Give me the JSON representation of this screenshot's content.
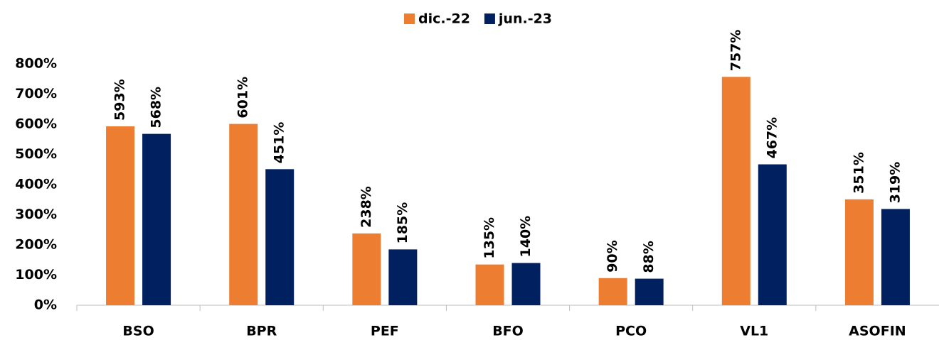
{
  "chart_data": {
    "type": "bar",
    "categories": [
      "BSO",
      "BPR",
      "PEF",
      "BFO",
      "PCO",
      "VL1",
      "ASOFIN"
    ],
    "series": [
      {
        "name": "dic.-22",
        "color": "#ed7d31",
        "values": [
          593,
          601,
          238,
          135,
          90,
          757,
          351
        ],
        "value_labels": [
          "593%",
          "601%",
          "238%",
          "135%",
          "90%",
          "757%",
          "351%"
        ]
      },
      {
        "name": "jun.-23",
        "color": "#002060",
        "values": [
          568,
          451,
          185,
          140,
          88,
          467,
          319
        ],
        "value_labels": [
          "568%",
          "451%",
          "185%",
          "140%",
          "88%",
          "467%",
          "319%"
        ]
      }
    ],
    "ylim": [
      0,
      800
    ],
    "yticks": [
      {
        "value": 0,
        "label": "0%"
      },
      {
        "value": 100,
        "label": "100%"
      },
      {
        "value": 200,
        "label": "200%"
      },
      {
        "value": 300,
        "label": "300%"
      },
      {
        "value": 400,
        "label": "400%"
      },
      {
        "value": 500,
        "label": "500%"
      },
      {
        "value": 600,
        "label": "600%"
      },
      {
        "value": 700,
        "label": "700%"
      },
      {
        "value": 800,
        "label": "800%"
      }
    ],
    "grid": false,
    "legend": "top"
  }
}
